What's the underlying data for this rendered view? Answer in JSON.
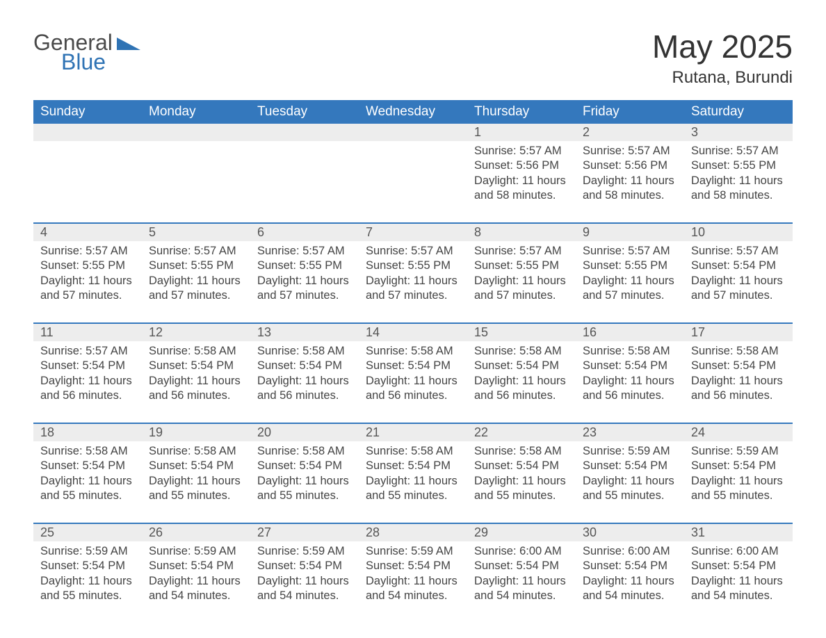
{
  "logo": {
    "part1": "General",
    "part2": "Blue"
  },
  "title": "May 2025",
  "subtitle": "Rutana, Burundi",
  "colors": {
    "header_bg": "#3478bd",
    "header_text": "#ffffff",
    "daynum_bg": "#ededed",
    "border": "#3478bd",
    "text": "#444444",
    "logo_gray": "#4a4a4a",
    "logo_blue": "#2f73b4"
  },
  "weekdays": [
    "Sunday",
    "Monday",
    "Tuesday",
    "Wednesday",
    "Thursday",
    "Friday",
    "Saturday"
  ],
  "weeks": [
    [
      null,
      null,
      null,
      null,
      {
        "n": "1",
        "sr": "5:57 AM",
        "ss": "5:56 PM",
        "dl": "11 hours and 58 minutes."
      },
      {
        "n": "2",
        "sr": "5:57 AM",
        "ss": "5:56 PM",
        "dl": "11 hours and 58 minutes."
      },
      {
        "n": "3",
        "sr": "5:57 AM",
        "ss": "5:55 PM",
        "dl": "11 hours and 58 minutes."
      }
    ],
    [
      {
        "n": "4",
        "sr": "5:57 AM",
        "ss": "5:55 PM",
        "dl": "11 hours and 57 minutes."
      },
      {
        "n": "5",
        "sr": "5:57 AM",
        "ss": "5:55 PM",
        "dl": "11 hours and 57 minutes."
      },
      {
        "n": "6",
        "sr": "5:57 AM",
        "ss": "5:55 PM",
        "dl": "11 hours and 57 minutes."
      },
      {
        "n": "7",
        "sr": "5:57 AM",
        "ss": "5:55 PM",
        "dl": "11 hours and 57 minutes."
      },
      {
        "n": "8",
        "sr": "5:57 AM",
        "ss": "5:55 PM",
        "dl": "11 hours and 57 minutes."
      },
      {
        "n": "9",
        "sr": "5:57 AM",
        "ss": "5:55 PM",
        "dl": "11 hours and 57 minutes."
      },
      {
        "n": "10",
        "sr": "5:57 AM",
        "ss": "5:54 PM",
        "dl": "11 hours and 57 minutes."
      }
    ],
    [
      {
        "n": "11",
        "sr": "5:57 AM",
        "ss": "5:54 PM",
        "dl": "11 hours and 56 minutes."
      },
      {
        "n": "12",
        "sr": "5:58 AM",
        "ss": "5:54 PM",
        "dl": "11 hours and 56 minutes."
      },
      {
        "n": "13",
        "sr": "5:58 AM",
        "ss": "5:54 PM",
        "dl": "11 hours and 56 minutes."
      },
      {
        "n": "14",
        "sr": "5:58 AM",
        "ss": "5:54 PM",
        "dl": "11 hours and 56 minutes."
      },
      {
        "n": "15",
        "sr": "5:58 AM",
        "ss": "5:54 PM",
        "dl": "11 hours and 56 minutes."
      },
      {
        "n": "16",
        "sr": "5:58 AM",
        "ss": "5:54 PM",
        "dl": "11 hours and 56 minutes."
      },
      {
        "n": "17",
        "sr": "5:58 AM",
        "ss": "5:54 PM",
        "dl": "11 hours and 56 minutes."
      }
    ],
    [
      {
        "n": "18",
        "sr": "5:58 AM",
        "ss": "5:54 PM",
        "dl": "11 hours and 55 minutes."
      },
      {
        "n": "19",
        "sr": "5:58 AM",
        "ss": "5:54 PM",
        "dl": "11 hours and 55 minutes."
      },
      {
        "n": "20",
        "sr": "5:58 AM",
        "ss": "5:54 PM",
        "dl": "11 hours and 55 minutes."
      },
      {
        "n": "21",
        "sr": "5:58 AM",
        "ss": "5:54 PM",
        "dl": "11 hours and 55 minutes."
      },
      {
        "n": "22",
        "sr": "5:58 AM",
        "ss": "5:54 PM",
        "dl": "11 hours and 55 minutes."
      },
      {
        "n": "23",
        "sr": "5:59 AM",
        "ss": "5:54 PM",
        "dl": "11 hours and 55 minutes."
      },
      {
        "n": "24",
        "sr": "5:59 AM",
        "ss": "5:54 PM",
        "dl": "11 hours and 55 minutes."
      }
    ],
    [
      {
        "n": "25",
        "sr": "5:59 AM",
        "ss": "5:54 PM",
        "dl": "11 hours and 55 minutes."
      },
      {
        "n": "26",
        "sr": "5:59 AM",
        "ss": "5:54 PM",
        "dl": "11 hours and 54 minutes."
      },
      {
        "n": "27",
        "sr": "5:59 AM",
        "ss": "5:54 PM",
        "dl": "11 hours and 54 minutes."
      },
      {
        "n": "28",
        "sr": "5:59 AM",
        "ss": "5:54 PM",
        "dl": "11 hours and 54 minutes."
      },
      {
        "n": "29",
        "sr": "6:00 AM",
        "ss": "5:54 PM",
        "dl": "11 hours and 54 minutes."
      },
      {
        "n": "30",
        "sr": "6:00 AM",
        "ss": "5:54 PM",
        "dl": "11 hours and 54 minutes."
      },
      {
        "n": "31",
        "sr": "6:00 AM",
        "ss": "5:54 PM",
        "dl": "11 hours and 54 minutes."
      }
    ]
  ],
  "labels": {
    "sunrise": "Sunrise: ",
    "sunset": "Sunset: ",
    "daylight": "Daylight: "
  }
}
